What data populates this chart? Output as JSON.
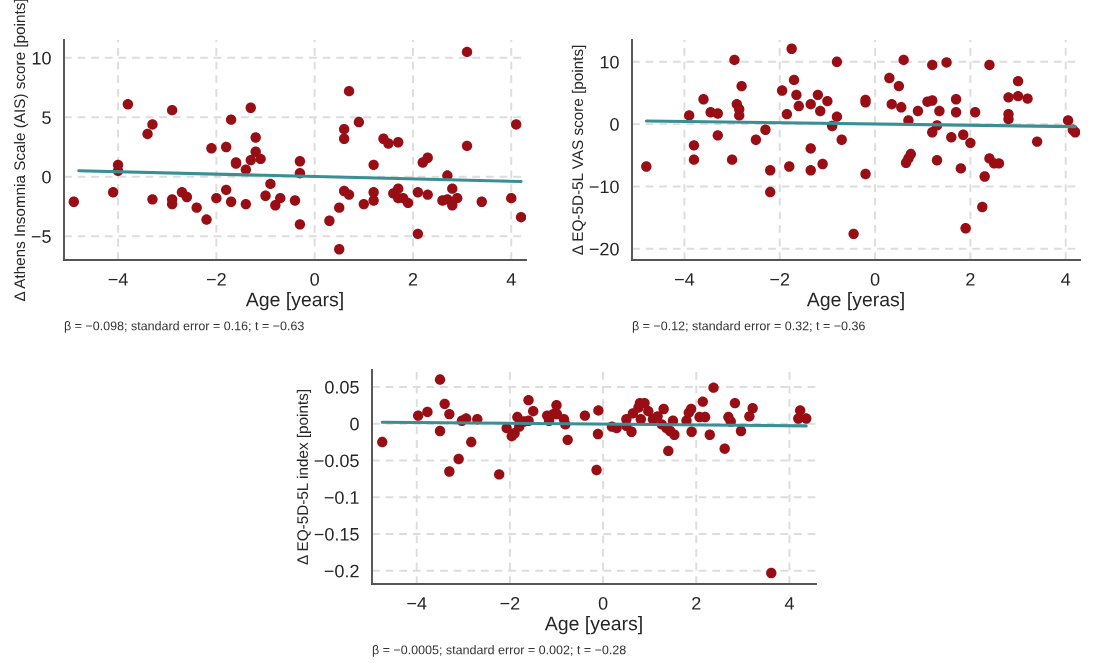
{
  "chart_data": [
    {
      "type": "scatter",
      "xlabel": "Age [years]",
      "ylabel": "Δ Athens Insomnia Scale (AIS) score [points]",
      "xlim": [
        -5.1,
        4.3
      ],
      "ylim": [
        -7,
        11.5
      ],
      "xticks": [
        -4,
        -2,
        0,
        2,
        4
      ],
      "yticks": [
        -5,
        0,
        5,
        10
      ],
      "grid": true,
      "annotations": [
        "β = −0.098; standard error = 0.16; t = −0.63"
      ],
      "series": [
        {
          "marker": "circle",
          "color": "#990d14",
          "x": [
            -4.9,
            -4.0,
            -4.0,
            -4.1,
            -3.8,
            -3.4,
            -3.3,
            -3.3,
            -2.9,
            -2.9,
            -2.9,
            -2.7,
            -2.6,
            -2.4,
            -2.2,
            -2.1,
            -2.0,
            -1.8,
            -1.8,
            -1.7,
            -1.7,
            -1.6,
            -1.6,
            -1.4,
            -1.4,
            -1.3,
            -1.3,
            -1.2,
            -1.2,
            -1.1,
            -1.0,
            -0.9,
            -0.8,
            -0.7,
            -0.4,
            -0.3,
            -0.3,
            -0.3,
            0.3,
            0.5,
            0.5,
            0.6,
            0.6,
            0.6,
            0.7,
            0.7,
            0.9,
            1.0,
            1.2,
            1.2,
            1.2,
            1.4,
            1.5,
            1.6,
            1.7,
            1.7,
            1.7,
            1.8,
            1.9,
            2.1,
            2.1,
            2.2,
            2.3,
            2.3,
            2.6,
            2.7,
            2.7,
            2.8,
            2.8,
            2.9,
            3.1,
            3.1,
            3.4,
            4.0,
            4.1,
            4.2
          ],
          "values": [
            -2.1,
            1.0,
            0.5,
            -1.3,
            6.1,
            3.6,
            4.4,
            -1.9,
            5.6,
            -2.3,
            -1.9,
            -1.3,
            -1.7,
            -2.6,
            -3.6,
            2.4,
            -1.8,
            2.5,
            -1.1,
            -2.1,
            4.8,
            1.2,
            1.1,
            0.6,
            -2.3,
            5.8,
            1.4,
            2.1,
            3.3,
            1.5,
            -1.6,
            -0.6,
            -2.4,
            -1.8,
            -2.0,
            1.3,
            0.3,
            -4.0,
            -3.7,
            -6.1,
            -2.6,
            4.0,
            3.2,
            -1.2,
            -1.5,
            7.2,
            4.6,
            -2.3,
            1.0,
            -1.3,
            -2.0,
            3.2,
            2.8,
            -1.4,
            -1.0,
            2.9,
            -1.8,
            -1.8,
            -2.2,
            -1.3,
            -4.8,
            1.2,
            1.6,
            -1.5,
            -2.0,
            0.1,
            -1.9,
            -1.0,
            -2.4,
            -1.8,
            10.5,
            2.6,
            -2.1,
            -1.8,
            4.4,
            -3.4
          ]
        },
        {
          "type": "line",
          "color": "#3a8f94",
          "x": [
            -4.8,
            4.2
          ],
          "values": [
            0.5,
            -0.4
          ]
        }
      ]
    },
    {
      "type": "scatter",
      "xlabel": "Age [yeras]",
      "ylabel": "Δ EQ-5D-5L VAS score [points]",
      "xlim": [
        -5.1,
        4.3
      ],
      "ylim": [
        -21.8,
        13.5
      ],
      "xticks": [
        -4,
        -2,
        0,
        2,
        4
      ],
      "yticks": [
        -20,
        -10,
        0,
        10
      ],
      "grid": true,
      "annotations": [
        "β = −0.12; standard error = 0.32; t = −0.36"
      ],
      "series": [
        {
          "marker": "circle",
          "color": "#990d14",
          "x": [
            -4.8,
            -3.9,
            -3.8,
            -3.8,
            -3.6,
            -3.45,
            -3.3,
            -3.3,
            -3.0,
            -2.95,
            -2.9,
            -2.85,
            -2.85,
            -2.8,
            -2.5,
            -2.3,
            -2.2,
            -2.2,
            -1.95,
            -1.85,
            -1.8,
            -1.75,
            -1.7,
            -1.65,
            -1.6,
            -1.35,
            -1.35,
            -1.35,
            -1.2,
            -1.15,
            -1.1,
            -1.0,
            -0.9,
            -0.8,
            -0.8,
            -0.7,
            -0.45,
            -0.2,
            -0.2,
            -0.2,
            0.3,
            0.35,
            0.5,
            0.55,
            0.6,
            0.7,
            0.65,
            0.7,
            0.75,
            0.9,
            1.1,
            1.2,
            1.2,
            1.2,
            1.3,
            1.3,
            1.35,
            1.5,
            1.6,
            1.7,
            1.7,
            1.8,
            1.85,
            1.9,
            2.0,
            2.1,
            2.25,
            2.3,
            2.4,
            2.4,
            2.5,
            2.6,
            2.8,
            2.8,
            2.8,
            3.0,
            3.0,
            3.2,
            3.4,
            4.05,
            4.15,
            4.2
          ],
          "values": [
            -6.8,
            1.4,
            -3.4,
            -5.7,
            4.0,
            1.9,
            1.7,
            -1.8,
            -5.7,
            10.3,
            3.2,
            2.4,
            1.4,
            6.1,
            -2.5,
            -0.9,
            -7.4,
            -10.9,
            5.4,
            1.6,
            -6.8,
            12.1,
            7.1,
            4.7,
            2.9,
            3.2,
            -3.9,
            -7.4,
            4.7,
            2.1,
            -6.4,
            3.7,
            -0.3,
            10.0,
            1.2,
            -2.5,
            -17.6,
            3.5,
            3.9,
            -8.0,
            7.4,
            3.2,
            6.1,
            2.7,
            10.3,
            0.6,
            -6.2,
            -5.5,
            -4.8,
            2.1,
            3.6,
            9.5,
            3.8,
            -1.3,
            -0.2,
            -5.8,
            2.1,
            9.9,
            -2.1,
            4.0,
            1.9,
            -7.1,
            -1.7,
            -16.7,
            -3.0,
            1.9,
            -13.3,
            -8.4,
            -5.5,
            9.5,
            -6.3,
            -6.3,
            4.3,
            1.6,
            0.8,
            4.5,
            6.9,
            4.1,
            -2.8,
            0.6,
            -0.9,
            -1.3
          ]
        },
        {
          "type": "line",
          "color": "#3a8f94",
          "x": [
            -4.8,
            4.2
          ],
          "values": [
            0.5,
            -0.4
          ]
        }
      ]
    },
    {
      "type": "scatter",
      "xlabel": "Age [years]",
      "ylabel": "Δ EQ-5D-5L index [points]",
      "xlim": [
        -4.96,
        4.57
      ],
      "ylim": [
        -0.218,
        0.073
      ],
      "xticks": [
        -4,
        -2,
        0,
        2,
        4
      ],
      "yticks": [
        -0.2,
        -0.15,
        -0.1,
        -0.05,
        0,
        0.05
      ],
      "grid": true,
      "annotations": [
        "β = −0.0005; standard error = 0.002; t = −0.28"
      ],
      "series": [
        {
          "marker": "circle",
          "color": "#990d14",
          "x": [
            -4.74,
            -3.97,
            -3.77,
            -3.5,
            -3.4,
            -3.5,
            -3.3,
            -3.3,
            -3.1,
            -3.03,
            -2.94,
            -2.83,
            -2.7,
            -2.23,
            -2.07,
            -1.96,
            -1.9,
            -1.84,
            -1.8,
            -1.7,
            -1.6,
            -1.5,
            -1.6,
            -1.2,
            -1.16,
            -1.07,
            -1.0,
            -0.99,
            -0.84,
            -0.81,
            -0.76,
            -0.39,
            -0.14,
            -0.1,
            -0.11,
            0.19,
            0.29,
            0.5,
            0.5,
            0.61,
            0.64,
            0.76,
            0.79,
            0.81,
            0.89,
            0.97,
            1.07,
            1.17,
            1.26,
            1.3,
            1.36,
            1.4,
            1.44,
            1.5,
            1.53,
            1.79,
            1.84,
            1.89,
            1.9,
            2.07,
            2.14,
            2.19,
            2.29,
            2.37,
            2.61,
            2.69,
            2.74,
            2.83,
            2.96,
            3.14,
            3.21,
            3.61,
            4.19,
            4.23,
            4.36
          ],
          "values": [
            -0.025,
            0.011,
            0.016,
            0.06,
            0.027,
            -0.01,
            0.013,
            -0.065,
            -0.048,
            0.004,
            0.007,
            -0.025,
            0.006,
            -0.069,
            -0.006,
            -0.017,
            -0.013,
            0.009,
            -0.004,
            0.003,
            0.032,
            0.017,
            0.004,
            0.011,
            0.004,
            0.013,
            0.025,
            0.013,
            0.006,
            -0.001,
            -0.022,
            0.011,
            -0.063,
            0.018,
            -0.014,
            -0.004,
            -0.006,
            0.006,
            -0.003,
            -0.011,
            0.014,
            0.022,
            0.028,
            0.006,
            0.028,
            0.017,
            0.006,
            0.01,
            -0.001,
            0.02,
            -0.006,
            -0.037,
            -0.01,
            0.004,
            -0.015,
            0.004,
            0.015,
            0.02,
            -0.011,
            0.009,
            0.03,
            0.009,
            -0.015,
            0.049,
            -0.034,
            0.009,
            0.003,
            0.028,
            -0.01,
            0.01,
            0.021,
            -0.203,
            0.007,
            0.018,
            0.007
          ]
        },
        {
          "type": "line",
          "color": "#3a8f94",
          "x": [
            -4.74,
            4.36
          ],
          "values": [
            0.002,
            -0.003
          ]
        }
      ]
    }
  ]
}
